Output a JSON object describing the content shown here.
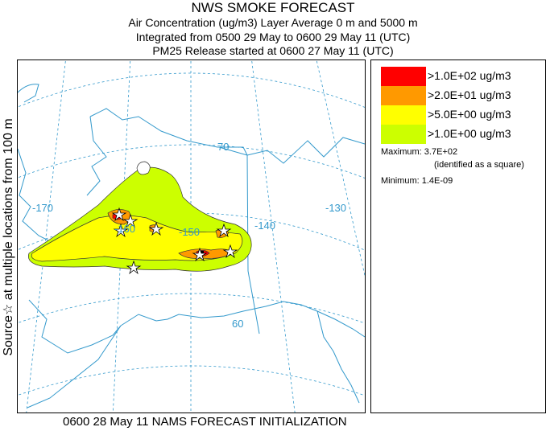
{
  "title": {
    "line1": "NWS SMOKE FORECAST",
    "line2": "Air Concentration (ug/m3) Layer Average    0 m and  5000 m",
    "line3": "Integrated from 0500 29 May to 0600 29 May 11 (UTC)",
    "line4": "PM25 Release started at 0600 27 May 11 (UTC)"
  },
  "side_label": "Source☆ at multiple locations   from   100 m",
  "footer": "0600 28 May 11 NAMS FORECAST INITIALIZATION",
  "map": {
    "lon_labels": [
      "-170",
      "-160",
      "-150",
      "-140",
      "-130"
    ],
    "lat_labels": [
      "70",
      "60"
    ],
    "colors": {
      "coast": "#3399cc",
      "grid": "#3399cc",
      "contour": "#333333",
      "source_marker": "#ffffff"
    }
  },
  "legend": {
    "items": [
      {
        "label": ">1.0E+02 ug/m3",
        "color": "#ff0000"
      },
      {
        "label": ">2.0E+01 ug/m3",
        "color": "#ff9900"
      },
      {
        "label": ">5.0E+00 ug/m3",
        "color": "#ffff00"
      },
      {
        "label": ">1.0E+00 ug/m3",
        "color": "#ccff00"
      }
    ],
    "maximum": "Maximum: 3.7E+02",
    "max_note": "(identified as a square)",
    "minimum": "Minimum: 1.4E-09"
  }
}
